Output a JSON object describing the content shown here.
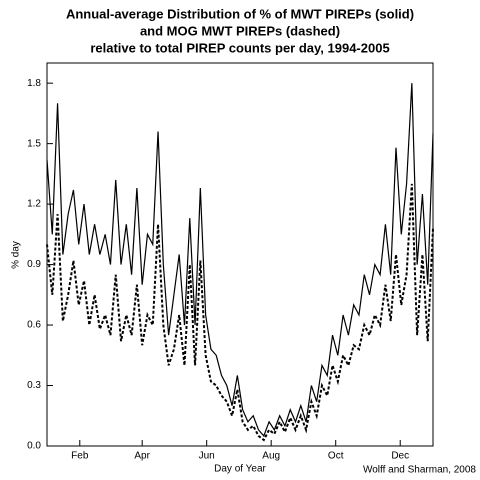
{
  "chart_data": {
    "type": "line",
    "title": [
      "Annual-average Distribution of % of MWT PIREPs (solid)",
      "and MOG MWT PIREPs (dashed)",
      "relative to total PIREP counts per day, 1994-2005"
    ],
    "xlabel": "Day of Year",
    "ylabel": "% day",
    "annotation": "Wolff and Sharman, 2008",
    "x": [
      1,
      6,
      11,
      16,
      21,
      26,
      31,
      36,
      41,
      46,
      51,
      56,
      61,
      66,
      71,
      76,
      81,
      86,
      91,
      96,
      101,
      106,
      111,
      116,
      121,
      126,
      131,
      136,
      141,
      146,
      151,
      156,
      161,
      166,
      171,
      176,
      181,
      186,
      191,
      196,
      201,
      206,
      211,
      216,
      221,
      226,
      231,
      236,
      241,
      246,
      251,
      256,
      261,
      266,
      271,
      276,
      281,
      286,
      291,
      296,
      301,
      306,
      311,
      316,
      321,
      326,
      331,
      336,
      341,
      346,
      351,
      356,
      361,
      366
    ],
    "series": [
      {
        "color": "#000000",
        "dash": false,
        "values": [
          1.42,
          1.05,
          1.7,
          0.95,
          1.15,
          1.27,
          1.0,
          1.2,
          0.95,
          1.1,
          0.95,
          1.05,
          0.9,
          1.32,
          0.9,
          1.1,
          0.85,
          1.28,
          0.8,
          1.05,
          1.0,
          1.56,
          0.9,
          0.55,
          0.75,
          0.95,
          0.6,
          1.13,
          0.6,
          1.28,
          0.65,
          0.48,
          0.45,
          0.35,
          0.3,
          0.2,
          0.35,
          0.18,
          0.12,
          0.15,
          0.08,
          0.05,
          0.12,
          0.08,
          0.15,
          0.1,
          0.18,
          0.12,
          0.2,
          0.12,
          0.3,
          0.22,
          0.4,
          0.35,
          0.55,
          0.45,
          0.65,
          0.55,
          0.7,
          0.65,
          0.85,
          0.75,
          0.9,
          0.85,
          1.1,
          0.85,
          1.48,
          1.05,
          1.3,
          1.8,
          0.9,
          1.25,
          0.8,
          1.55
        ]
      },
      {
        "color": "#000000",
        "dash": true,
        "values": [
          1.0,
          0.75,
          1.15,
          0.62,
          0.75,
          0.92,
          0.7,
          0.82,
          0.6,
          0.75,
          0.58,
          0.65,
          0.55,
          0.85,
          0.52,
          0.65,
          0.55,
          0.8,
          0.5,
          0.65,
          0.6,
          1.1,
          0.6,
          0.4,
          0.48,
          0.65,
          0.4,
          0.9,
          0.4,
          0.92,
          0.45,
          0.32,
          0.3,
          0.25,
          0.22,
          0.15,
          0.28,
          0.12,
          0.08,
          0.1,
          0.05,
          0.03,
          0.08,
          0.06,
          0.12,
          0.07,
          0.14,
          0.08,
          0.15,
          0.08,
          0.22,
          0.15,
          0.3,
          0.25,
          0.4,
          0.32,
          0.45,
          0.4,
          0.5,
          0.48,
          0.6,
          0.55,
          0.65,
          0.6,
          0.8,
          0.62,
          0.95,
          0.7,
          0.85,
          1.3,
          0.55,
          0.95,
          0.52,
          1.08
        ]
      }
    ],
    "xlim": [
      1,
      366
    ],
    "xticks": [
      {
        "value": 32,
        "label": "Feb"
      },
      {
        "value": 91,
        "label": "Apr"
      },
      {
        "value": 152,
        "label": "Jun"
      },
      {
        "value": 213,
        "label": "Aug"
      },
      {
        "value": 274,
        "label": "Oct"
      },
      {
        "value": 335,
        "label": "Dec"
      }
    ],
    "ylim": [
      0,
      1.9
    ],
    "yticks": [
      {
        "value": 0,
        "label": "0.0"
      },
      0.3,
      0.6,
      0.9,
      1.2,
      1.5,
      1.8
    ],
    "grid": false
  }
}
